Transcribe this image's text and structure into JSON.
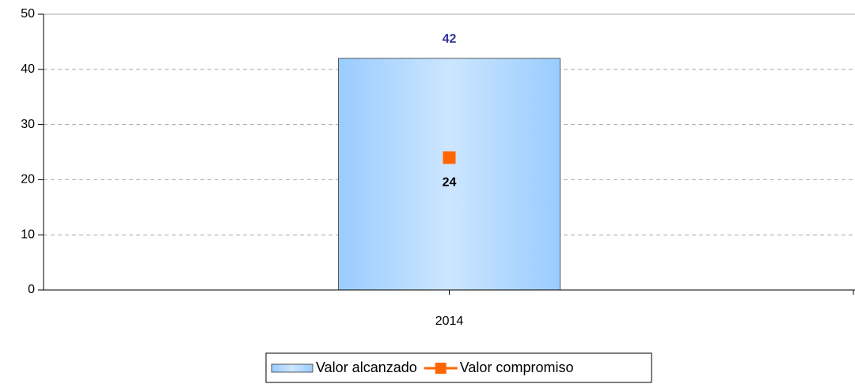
{
  "chart_data": {
    "type": "bar",
    "categories": [
      "2014"
    ],
    "series": [
      {
        "name": "Valor alcanzado",
        "type": "bar",
        "color": "#99ccff",
        "label_color": "#333399",
        "values": [
          42
        ]
      },
      {
        "name": "Valor compromiso",
        "type": "line",
        "color": "#ff6600",
        "label_color": "#000000",
        "values": [
          24
        ]
      }
    ],
    "ylim": [
      0,
      50
    ],
    "yticks": [
      0,
      10,
      20,
      30,
      40,
      50
    ],
    "grid": true,
    "legend": "bottom"
  }
}
